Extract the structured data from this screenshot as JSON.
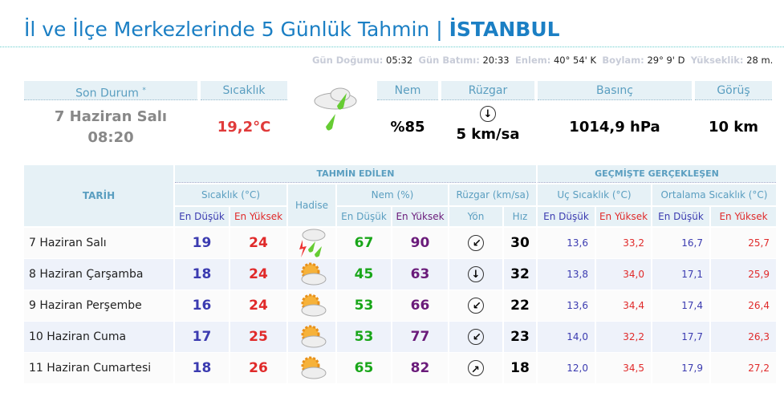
{
  "title": {
    "prefix": "İl ve İlçe Merkezlerinde 5 Günlük Tahmin | ",
    "city": "İSTANBUL"
  },
  "sun_info": [
    {
      "k": "Gün Doğumu:",
      "v": "05:32"
    },
    {
      "k": "Gün Batımı:",
      "v": "20:33"
    },
    {
      "k": "Enlem:",
      "v": "40° 54' K"
    },
    {
      "k": "Boylam:",
      "v": "29° 9' D"
    },
    {
      "k": "Yükseklik:",
      "v": "28 m."
    }
  ],
  "current": {
    "son_durum_label": "Son Durum",
    "asterisk": "*",
    "sicaklik_label": "Sıcaklık",
    "nem_label": "Nem",
    "ruzgar_label": "Rüzgar",
    "basinc_label": "Basınç",
    "gorus_label": "Görüş",
    "date": "7 Haziran Salı",
    "time": "08:20",
    "temperature": "19,2°C",
    "icon": "cloud-rain-icon",
    "humidity": "%85",
    "wind_dir": "south",
    "wind": "5 km/sa",
    "pressure": "1014,9 hPa",
    "visibility": "10 km"
  },
  "colors": {
    "title": "#1b7fc4",
    "header_bg": "#e6f1f6",
    "header_text": "#5a9ec0",
    "low": "#3b3bb0",
    "high": "#e02a2a",
    "nem_low": "#19a619",
    "nem_high": "#6a1b7a"
  },
  "table": {
    "tarih": "TARİH",
    "tahmin": "TAHMİN EDİLEN",
    "gecmis": "GEÇMİŞTE GERÇEKLEŞEN",
    "sicaklik": "Sıcaklık (°C)",
    "hadise": "Hadise",
    "nem": "Nem (%)",
    "ruzgar": "Rüzgar (km/sa)",
    "uc": "Uç Sıcaklık (°C)",
    "ort": "Ortalama Sıcaklık (°C)",
    "en_dusuk": "En Düşük",
    "en_yuksek": "En Yüksek",
    "yon": "Yön",
    "hiz": "Hız",
    "rows": [
      {
        "date": "7 Haziran Salı",
        "low": "19",
        "high": "24",
        "icon": "thunder-rain-icon",
        "nem_low": "67",
        "nem_high": "90",
        "dir": "southwest",
        "rot": 45,
        "speed": "30",
        "uc_low": "13,6",
        "uc_high": "33,2",
        "ort_low": "16,7",
        "ort_high": "25,7"
      },
      {
        "date": "8 Haziran Çarşamba",
        "low": "18",
        "high": "24",
        "icon": "partly-cloudy-icon",
        "nem_low": "45",
        "nem_high": "63",
        "dir": "south",
        "rot": 0,
        "speed": "32",
        "uc_low": "13,8",
        "uc_high": "34,0",
        "ort_low": "17,1",
        "ort_high": "25,9"
      },
      {
        "date": "9 Haziran Perşembe",
        "low": "16",
        "high": "24",
        "icon": "partly-cloudy-icon",
        "nem_low": "53",
        "nem_high": "66",
        "dir": "southwest",
        "rot": 45,
        "speed": "22",
        "uc_low": "13,6",
        "uc_high": "34,4",
        "ort_low": "17,4",
        "ort_high": "26,4"
      },
      {
        "date": "10 Haziran Cuma",
        "low": "17",
        "high": "25",
        "icon": "partly-cloudy-icon",
        "nem_low": "53",
        "nem_high": "77",
        "dir": "southwest",
        "rot": 45,
        "speed": "23",
        "uc_low": "14,0",
        "uc_high": "32,2",
        "ort_low": "17,7",
        "ort_high": "26,3"
      },
      {
        "date": "11 Haziran Cumartesi",
        "low": "18",
        "high": "26",
        "icon": "partly-cloudy-icon",
        "nem_low": "65",
        "nem_high": "82",
        "dir": "northeast",
        "rot": 225,
        "speed": "18",
        "uc_low": "12,0",
        "uc_high": "34,5",
        "ort_low": "17,9",
        "ort_high": "27,2"
      }
    ]
  }
}
